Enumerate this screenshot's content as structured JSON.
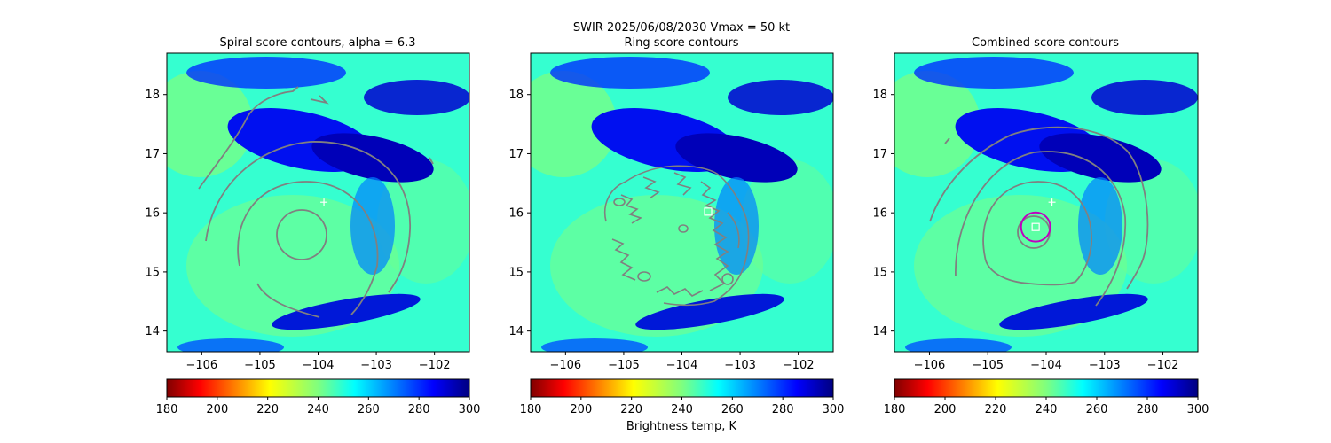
{
  "figure": {
    "suptitle_line1": "SWIR  2025/06/08/2030    Vmax = 50 kt",
    "colorbar_label": "Brightness temp, K"
  },
  "chart_data": [
    {
      "type": "heatmap",
      "title": "Spiral score contours, alpha =  6.3",
      "xlabel": "",
      "ylabel": "",
      "xlim": [
        -106.6,
        -101.4
      ],
      "ylim": [
        13.65,
        18.7
      ],
      "xticks": [
        -106,
        -105,
        -104,
        -103,
        -102
      ],
      "xtick_labels": [
        "−106",
        "−105",
        "−104",
        "−103",
        "−102"
      ],
      "yticks": [
        14,
        15,
        16,
        17,
        18
      ],
      "ytick_labels": [
        "14",
        "15",
        "16",
        "17",
        "18"
      ],
      "colorbar": {
        "colormap": "jet_r",
        "range": [
          180,
          300
        ],
        "ticks": [
          180,
          200,
          220,
          240,
          260,
          280,
          300
        ],
        "tick_labels": [
          "180",
          "200",
          "220",
          "240",
          "260",
          "280",
          "300"
        ]
      },
      "contour_color": "#808080",
      "markers": [
        {
          "kind": "plus",
          "lon": -103.9,
          "lat": 16.18,
          "color": "#ffffff"
        }
      ]
    },
    {
      "type": "heatmap",
      "title": "Ring score contours",
      "xlabel": "",
      "ylabel": "",
      "xlim": [
        -106.6,
        -101.4
      ],
      "ylim": [
        13.65,
        18.7
      ],
      "xticks": [
        -106,
        -105,
        -104,
        -103,
        -102
      ],
      "xtick_labels": [
        "−106",
        "−105",
        "−104",
        "−103",
        "−102"
      ],
      "yticks": [
        14,
        15,
        16,
        17,
        18
      ],
      "ytick_labels": [
        "14",
        "15",
        "16",
        "17",
        "18"
      ],
      "colorbar": {
        "colormap": "jet_r",
        "range": [
          180,
          300
        ],
        "ticks": [
          180,
          200,
          220,
          240,
          260,
          280,
          300
        ],
        "tick_labels": [
          "180",
          "200",
          "220",
          "240",
          "260",
          "280",
          "300"
        ]
      },
      "contour_color": "#808080",
      "markers": [
        {
          "kind": "square",
          "lon": -103.55,
          "lat": 16.02,
          "color": "#ffffff"
        }
      ]
    },
    {
      "type": "heatmap",
      "title": "Combined score contours",
      "xlabel": "",
      "ylabel": "",
      "xlim": [
        -106.6,
        -101.4
      ],
      "ylim": [
        13.65,
        18.7
      ],
      "xticks": [
        -106,
        -105,
        -104,
        -103,
        -102
      ],
      "xtick_labels": [
        "−106",
        "−105",
        "−104",
        "−103",
        "−102"
      ],
      "yticks": [
        14,
        15,
        16,
        17,
        18
      ],
      "ytick_labels": [
        "14",
        "15",
        "16",
        "17",
        "18"
      ],
      "colorbar": {
        "colormap": "jet_r",
        "range": [
          180,
          300
        ],
        "ticks": [
          180,
          200,
          220,
          240,
          260,
          280,
          300
        ],
        "tick_labels": [
          "180",
          "200",
          "220",
          "240",
          "260",
          "280",
          "300"
        ]
      },
      "contour_color": "#808080",
      "markers": [
        {
          "kind": "plus",
          "lon": -103.9,
          "lat": 16.18,
          "color": "#ffffff"
        },
        {
          "kind": "square",
          "lon": -104.18,
          "lat": 15.76,
          "color": "#ffffff"
        },
        {
          "kind": "circle",
          "lon": -104.18,
          "lat": 15.76,
          "radius_deg": 0.25,
          "color": "#c000c0"
        }
      ]
    }
  ]
}
